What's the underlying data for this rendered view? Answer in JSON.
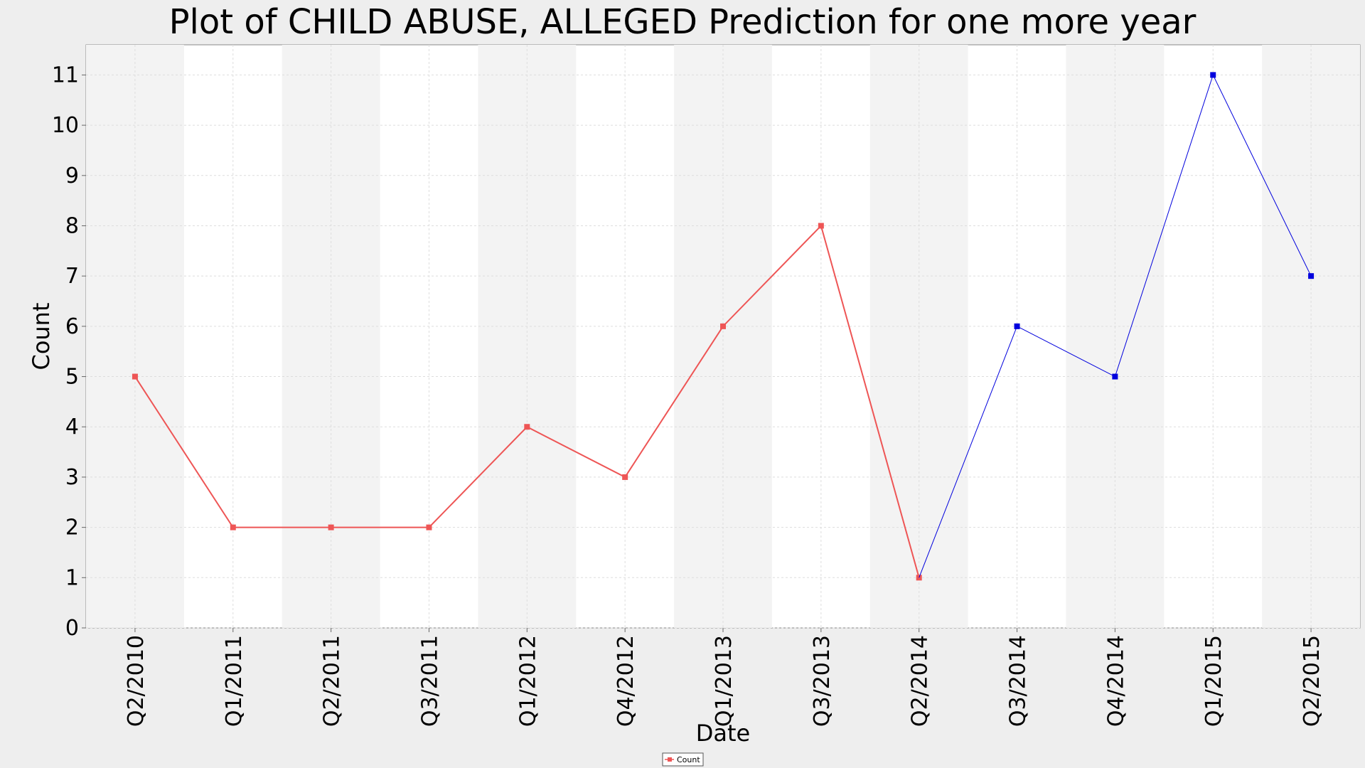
{
  "chart_data": {
    "type": "line",
    "title": "Plot of CHILD ABUSE, ALLEGED Prediction for one more year",
    "xlabel": "Date",
    "ylabel": "Count",
    "ylim": [
      0,
      11
    ],
    "yticks": [
      0,
      1,
      2,
      3,
      4,
      5,
      6,
      7,
      8,
      9,
      10,
      11
    ],
    "categories": [
      "Q2/2010",
      "Q1/2011",
      "Q2/2011",
      "Q3/2011",
      "Q1/2012",
      "Q4/2012",
      "Q1/2013",
      "Q3/2013",
      "Q2/2014",
      "Q3/2014",
      "Q4/2014",
      "Q1/2015",
      "Q2/2015"
    ],
    "series": [
      {
        "name": "Count",
        "color": "#ee5555",
        "values": [
          5,
          2,
          2,
          2,
          4,
          3,
          6,
          8,
          1,
          null,
          null,
          null,
          null
        ]
      },
      {
        "color": "#0000dd",
        "values": [
          null,
          null,
          null,
          null,
          null,
          null,
          null,
          null,
          1,
          6,
          5,
          11,
          7
        ]
      }
    ],
    "grid": true,
    "legend": "bottom-center"
  }
}
